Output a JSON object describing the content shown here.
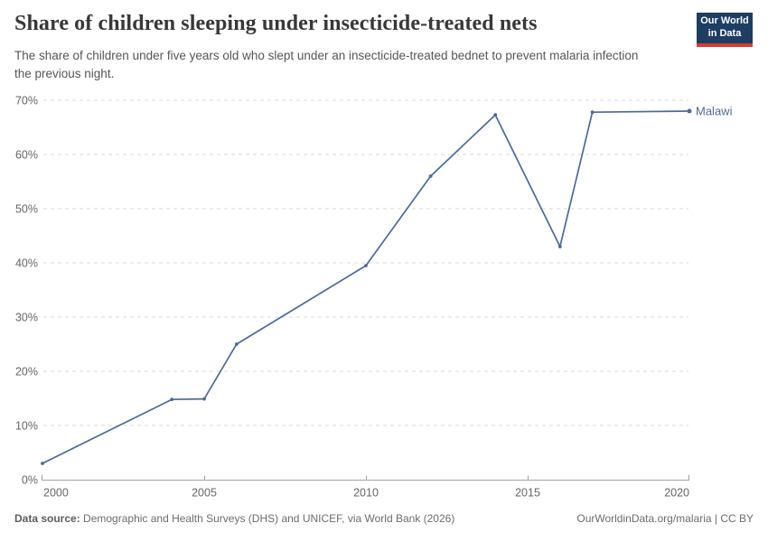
{
  "header": {
    "title": "Share of children sleeping under insecticide-treated nets",
    "subtitle": "The share of children under five years old who slept under an insecticide-treated bednet to prevent malaria infection the previous night.",
    "logo": {
      "line1": "Our World",
      "line2": "in Data",
      "bg_color": "#1d3d63",
      "stripe_color": "#d73c2e"
    }
  },
  "chart_data": {
    "type": "line",
    "title": "Share of children sleeping under insecticide-treated nets",
    "xlabel": "",
    "ylabel": "",
    "xlim": [
      2000,
      2020
    ],
    "ylim": [
      0,
      70
    ],
    "x_ticks": [
      2000,
      2005,
      2010,
      2015,
      2020
    ],
    "y_ticks": [
      0,
      10,
      20,
      30,
      40,
      50,
      60,
      70
    ],
    "y_tick_suffix": "%",
    "grid": "horizontal-dashed",
    "legend_position": "end-of-line-label",
    "series": [
      {
        "name": "Malawi",
        "color": "#4C6A9C",
        "points": [
          [
            2000,
            3.0
          ],
          [
            2004,
            14.8
          ],
          [
            2005,
            14.9
          ],
          [
            2006,
            25.0
          ],
          [
            2010,
            39.5
          ],
          [
            2012,
            56.0
          ],
          [
            2014,
            67.3
          ],
          [
            2016,
            43.0
          ],
          [
            2017,
            67.8
          ],
          [
            2020,
            68.0
          ]
        ]
      }
    ]
  },
  "footer": {
    "source_label": "Data source:",
    "source_text": " Demographic and Health Surveys (DHS) and UNICEF, via World Bank (2026)",
    "link_text": "OurWorldinData.org/malaria | CC BY"
  }
}
